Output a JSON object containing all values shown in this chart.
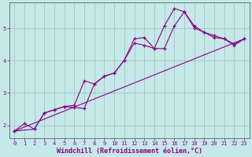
{
  "xlabel": "Windchill (Refroidissement éolien,°C)",
  "xlim": [
    -0.5,
    23.5
  ],
  "ylim": [
    1.6,
    5.8
  ],
  "background_color": "#c5e8e8",
  "line_color": "#880088",
  "grid_color": "#9bbfbf",
  "xticks": [
    0,
    1,
    2,
    3,
    4,
    5,
    6,
    7,
    8,
    9,
    10,
    11,
    12,
    13,
    14,
    15,
    16,
    17,
    18,
    19,
    20,
    21,
    22,
    23
  ],
  "yticks": [
    2,
    3,
    4,
    5
  ],
  "line1_x": [
    0,
    1,
    2,
    3,
    4,
    5,
    6,
    7,
    8,
    9,
    10,
    11,
    12,
    13,
    14,
    15,
    16,
    17,
    18,
    19,
    20,
    21,
    22,
    23
  ],
  "line1_y": [
    1.82,
    2.05,
    1.88,
    2.38,
    2.48,
    2.58,
    2.62,
    3.38,
    3.28,
    3.52,
    3.62,
    4.02,
    4.68,
    4.72,
    4.38,
    5.08,
    5.62,
    5.52,
    5.08,
    4.88,
    4.78,
    4.68,
    4.48,
    4.68
  ],
  "line2_x": [
    0,
    2,
    3,
    4,
    5,
    6,
    7,
    8,
    9,
    10,
    11,
    12,
    13,
    14,
    15,
    16,
    17,
    18,
    19,
    20,
    21,
    22,
    23
  ],
  "line2_y": [
    1.82,
    1.88,
    2.38,
    2.48,
    2.58,
    2.55,
    2.52,
    3.28,
    3.52,
    3.62,
    4.02,
    4.55,
    4.48,
    4.38,
    4.38,
    5.08,
    5.52,
    5.02,
    4.88,
    4.72,
    4.68,
    4.52,
    4.68
  ],
  "line3_x": [
    0,
    23
  ],
  "line3_y": [
    1.82,
    4.68
  ],
  "font_color": "#880088",
  "tick_fontsize": 5,
  "label_fontsize": 6,
  "spine_color": "#556666"
}
